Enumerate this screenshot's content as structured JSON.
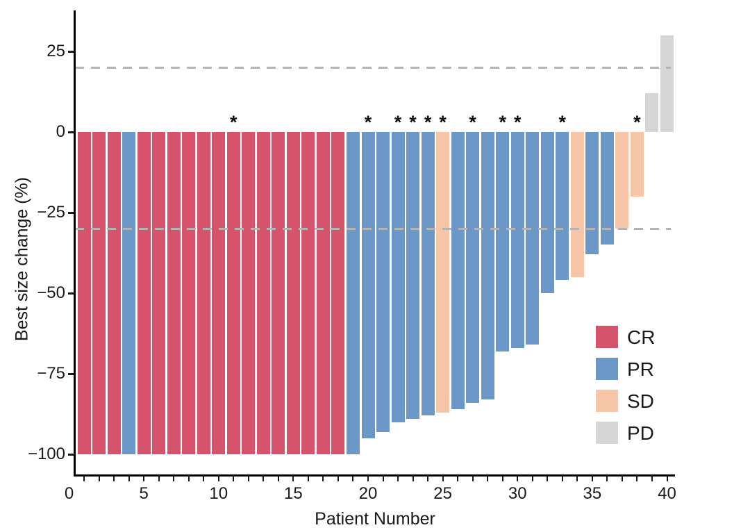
{
  "chart_data": {
    "type": "bar",
    "title": "",
    "xlabel": "Patient Number",
    "ylabel": "Best size change (%)",
    "xlim": [
      0,
      40.6
    ],
    "ylim": [
      -111,
      38
    ],
    "grid": false,
    "legend_position": "inside-lower-right",
    "annotation_glyph": "*",
    "reference_lines": [
      {
        "y": 20,
        "style": "dashed",
        "color": "#b4b4b4"
      },
      {
        "y": -30,
        "style": "dashed",
        "color": "#b4b4b4"
      }
    ],
    "x_ticks": {
      "minor_tick_values": [
        1,
        2,
        3,
        4,
        5,
        6,
        7,
        8,
        9,
        10,
        11,
        12,
        13,
        14,
        15,
        16,
        17,
        18,
        19,
        20,
        21,
        22,
        23,
        24,
        25,
        26,
        27,
        28,
        29,
        30,
        31,
        32,
        33,
        34,
        35,
        36,
        37,
        38,
        39,
        40
      ],
      "labeled_values": [
        0,
        5,
        10,
        15,
        20,
        25,
        30,
        35,
        40
      ],
      "labels": [
        "0",
        "5",
        "10",
        "15",
        "20",
        "25",
        "30",
        "35",
        "40"
      ]
    },
    "y_ticks": [
      {
        "value": 25,
        "label": "25"
      },
      {
        "value": 0,
        "label": "0"
      },
      {
        "value": -25,
        "label": "−25"
      },
      {
        "value": -50,
        "label": "−50"
      },
      {
        "value": -75,
        "label": "−75"
      },
      {
        "value": -100,
        "label": "−100"
      }
    ],
    "response_colors": {
      "CR": "#D5536B",
      "PR": "#6C98C7",
      "SD": "#F7C6A8",
      "PD": "#D6D6D6"
    },
    "legend": [
      {
        "label": "CR",
        "color": "#D5536B"
      },
      {
        "label": "PR",
        "color": "#6C98C7"
      },
      {
        "label": "SD",
        "color": "#F7C6A8"
      },
      {
        "label": "PD",
        "color": "#D6D6D6"
      }
    ],
    "patients": [
      {
        "n": 1,
        "value": -100,
        "response": "CR",
        "asterisk": false
      },
      {
        "n": 2,
        "value": -100,
        "response": "CR",
        "asterisk": false
      },
      {
        "n": 3,
        "value": -100,
        "response": "CR",
        "asterisk": false
      },
      {
        "n": 4,
        "value": -100,
        "response": "PR",
        "asterisk": false
      },
      {
        "n": 5,
        "value": -100,
        "response": "CR",
        "asterisk": false
      },
      {
        "n": 6,
        "value": -100,
        "response": "CR",
        "asterisk": false
      },
      {
        "n": 7,
        "value": -100,
        "response": "CR",
        "asterisk": false
      },
      {
        "n": 8,
        "value": -100,
        "response": "CR",
        "asterisk": false
      },
      {
        "n": 9,
        "value": -100,
        "response": "CR",
        "asterisk": false
      },
      {
        "n": 10,
        "value": -100,
        "response": "CR",
        "asterisk": false
      },
      {
        "n": 11,
        "value": -100,
        "response": "CR",
        "asterisk": true
      },
      {
        "n": 12,
        "value": -100,
        "response": "CR",
        "asterisk": false
      },
      {
        "n": 13,
        "value": -100,
        "response": "CR",
        "asterisk": false
      },
      {
        "n": 14,
        "value": -100,
        "response": "CR",
        "asterisk": false
      },
      {
        "n": 15,
        "value": -100,
        "response": "CR",
        "asterisk": false
      },
      {
        "n": 16,
        "value": -100,
        "response": "CR",
        "asterisk": false
      },
      {
        "n": 17,
        "value": -100,
        "response": "CR",
        "asterisk": false
      },
      {
        "n": 18,
        "value": -100,
        "response": "CR",
        "asterisk": false
      },
      {
        "n": 19,
        "value": -100,
        "response": "PR",
        "asterisk": false
      },
      {
        "n": 20,
        "value": -95,
        "response": "PR",
        "asterisk": true
      },
      {
        "n": 21,
        "value": -93,
        "response": "PR",
        "asterisk": false
      },
      {
        "n": 22,
        "value": -90,
        "response": "PR",
        "asterisk": true
      },
      {
        "n": 23,
        "value": -89,
        "response": "PR",
        "asterisk": true
      },
      {
        "n": 24,
        "value": -88,
        "response": "PR",
        "asterisk": true
      },
      {
        "n": 25,
        "value": -87,
        "response": "SD",
        "asterisk": true
      },
      {
        "n": 26,
        "value": -86,
        "response": "PR",
        "asterisk": false
      },
      {
        "n": 27,
        "value": -84,
        "response": "PR",
        "asterisk": true
      },
      {
        "n": 28,
        "value": -83,
        "response": "PR",
        "asterisk": false
      },
      {
        "n": 29,
        "value": -68,
        "response": "PR",
        "asterisk": true
      },
      {
        "n": 30,
        "value": -67,
        "response": "PR",
        "asterisk": true
      },
      {
        "n": 31,
        "value": -66,
        "response": "PR",
        "asterisk": false
      },
      {
        "n": 32,
        "value": -50,
        "response": "PR",
        "asterisk": false
      },
      {
        "n": 33,
        "value": -46,
        "response": "PR",
        "asterisk": true
      },
      {
        "n": 34,
        "value": -45,
        "response": "SD",
        "asterisk": false
      },
      {
        "n": 35,
        "value": -38,
        "response": "PR",
        "asterisk": false
      },
      {
        "n": 36,
        "value": -35,
        "response": "PR",
        "asterisk": false
      },
      {
        "n": 37,
        "value": -30,
        "response": "SD",
        "asterisk": false
      },
      {
        "n": 38,
        "value": -20,
        "response": "SD",
        "asterisk": true
      },
      {
        "n": 39,
        "value": 12,
        "response": "PD",
        "asterisk": false
      },
      {
        "n": 40,
        "value": 30,
        "response": "PD",
        "asterisk": false
      }
    ]
  }
}
